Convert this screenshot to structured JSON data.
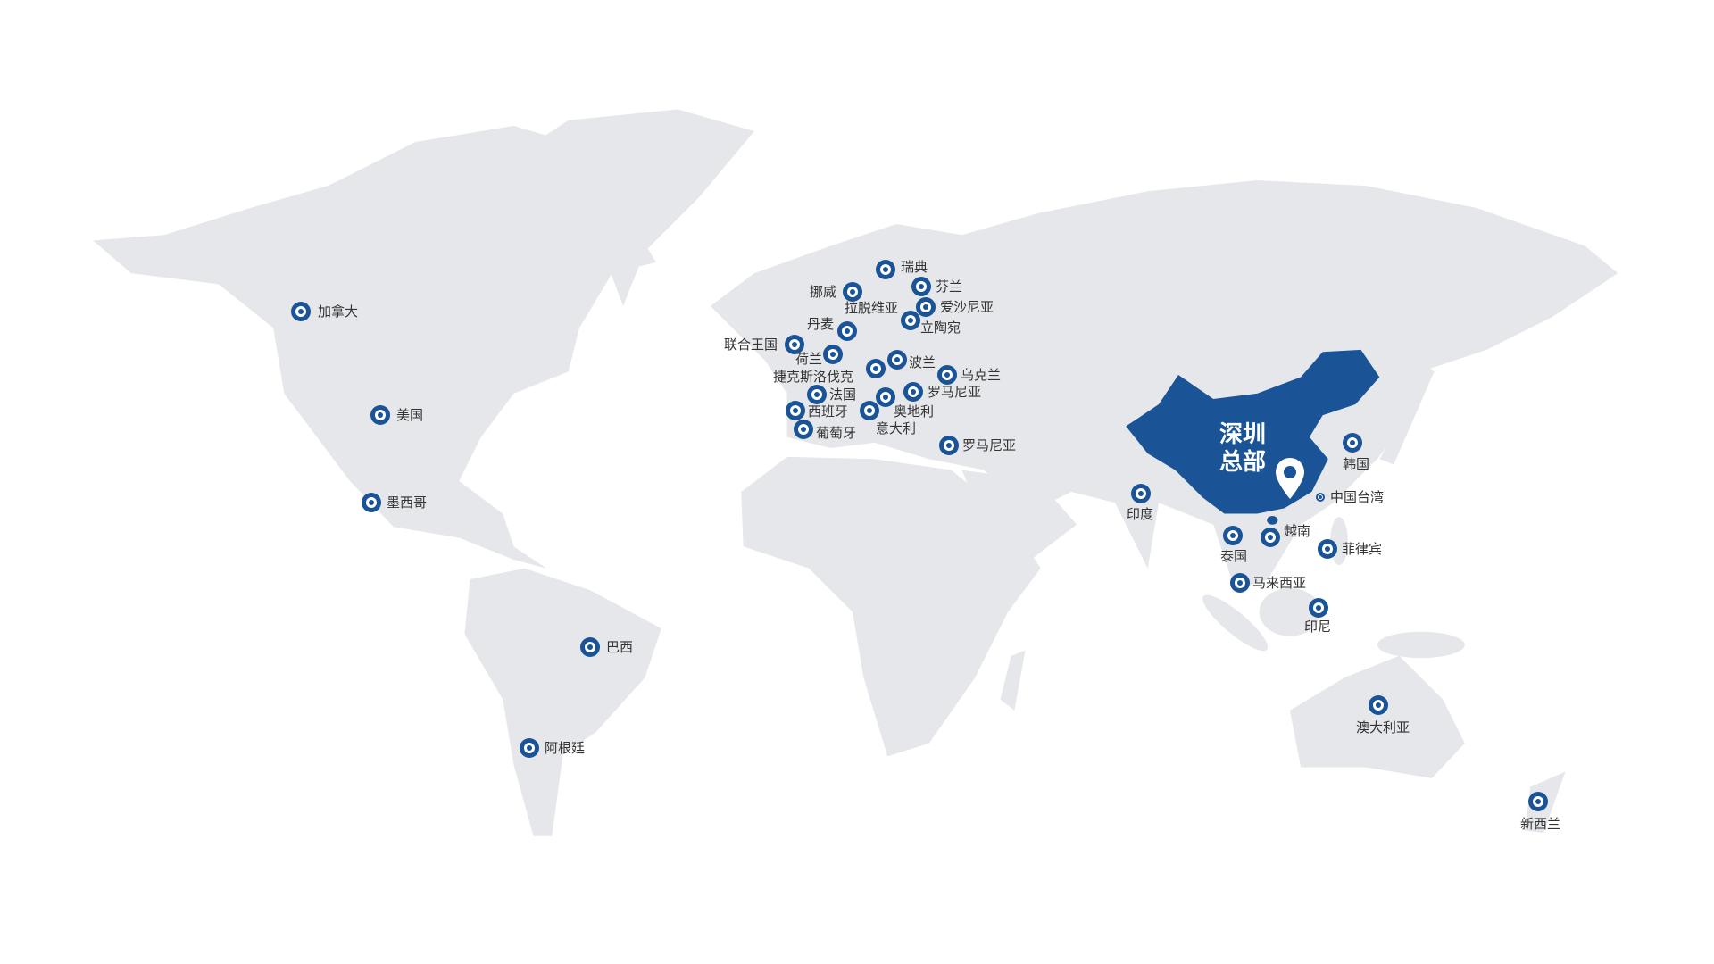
{
  "colors": {
    "land": "#e6e7eb",
    "highlight": "#1a5496",
    "marker": "#1a5496",
    "label": "#333333"
  },
  "headquarters": {
    "line1": "深圳",
    "line2": "总部",
    "icon": "map-pin-icon"
  },
  "labels": {
    "canada": "加拿大",
    "usa": "美国",
    "mexico": "墨西哥",
    "brazil": "巴西",
    "argentina": "阿根廷",
    "sweden": "瑞典",
    "norway": "挪威",
    "finland": "芬兰",
    "estonia": "爱沙尼亚",
    "latvia": "拉脱维亚",
    "lithuania": "立陶宛",
    "denmark": "丹麦",
    "uk": "联合王国",
    "netherlands": "荷兰",
    "poland": "波兰",
    "czechoslovakia": "捷克斯洛伐克",
    "ukraine": "乌克兰",
    "france": "法国",
    "romania": "罗马尼亚",
    "austria": "奥地利",
    "spain": "西班牙",
    "italy": "意大利",
    "portugal": "葡萄牙",
    "romania2": "罗马尼亚",
    "korea": "韩国",
    "taiwan": "中国台湾",
    "india": "印度",
    "thailand": "泰国",
    "vietnam": "越南",
    "philippines": "菲律宾",
    "malaysia": "马来西亚",
    "indonesia": "印尼",
    "australia": "澳大利亚",
    "newzealand": "新西兰"
  }
}
